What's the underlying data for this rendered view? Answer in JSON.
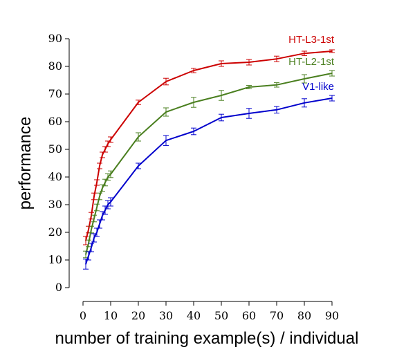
{
  "chart_data": {
    "type": "line",
    "title": "",
    "xlabel": "number of training example(s) / individual",
    "ylabel": "performance",
    "xlim": [
      0,
      90
    ],
    "ylim": [
      0,
      90
    ],
    "xticks": [
      0,
      10,
      20,
      30,
      40,
      50,
      60,
      70,
      80,
      90
    ],
    "yticks": [
      0,
      10,
      20,
      30,
      40,
      50,
      60,
      70,
      80,
      90
    ],
    "grid": false,
    "legend": "inline labels at right end of each series",
    "series": [
      {
        "name": "HT-L3-1st",
        "color": "#cc0000",
        "points": [
          [
            1,
            17,
            1.5
          ],
          [
            2,
            21,
            1.2
          ],
          [
            3,
            26,
            1.2
          ],
          [
            4,
            33,
            1.2
          ],
          [
            5,
            38,
            1.0
          ],
          [
            6,
            44,
            1.0
          ],
          [
            7,
            48,
            1.0
          ],
          [
            8,
            50,
            1.0
          ],
          [
            9,
            52,
            1.0
          ],
          [
            10,
            53.5,
            1.0
          ],
          [
            20,
            67,
            0.8
          ],
          [
            30,
            74.5,
            1.2
          ],
          [
            40,
            78.5,
            0.8
          ],
          [
            50,
            81,
            1.0
          ],
          [
            60,
            81.5,
            1.0
          ],
          [
            70,
            82.7,
            1.0
          ],
          [
            80,
            84.7,
            0.8
          ],
          [
            90,
            85.5,
            0.5
          ]
        ]
      },
      {
        "name": "HT-L2-1st",
        "color": "#4a7f1f",
        "points": [
          [
            1,
            12,
            1.2
          ],
          [
            2,
            16,
            1.2
          ],
          [
            3,
            21,
            1.2
          ],
          [
            4,
            25,
            1.2
          ],
          [
            5,
            29,
            1.2
          ],
          [
            6,
            33,
            1.2
          ],
          [
            7,
            36,
            1.2
          ],
          [
            8,
            38,
            1.2
          ],
          [
            9,
            40,
            1.2
          ],
          [
            10,
            41,
            1.2
          ],
          [
            20,
            54.5,
            1.5
          ],
          [
            30,
            63.5,
            1.5
          ],
          [
            40,
            67,
            1.8
          ],
          [
            50,
            69.5,
            1.8
          ],
          [
            60,
            72.5,
            0.6
          ],
          [
            70,
            73.3,
            0.8
          ],
          [
            80,
            75.5,
            1.5
          ],
          [
            90,
            77.5,
            1.0
          ]
        ]
      },
      {
        "name": "V1-like",
        "color": "#0000cc",
        "points": [
          [
            1,
            8.5,
            1.8
          ],
          [
            2,
            11.5,
            1.5
          ],
          [
            3,
            14.5,
            1.5
          ],
          [
            4,
            18,
            1.5
          ],
          [
            5,
            20,
            1.5
          ],
          [
            6,
            23,
            1.5
          ],
          [
            7,
            26,
            1.5
          ],
          [
            8,
            28,
            1.5
          ],
          [
            9,
            30,
            1.5
          ],
          [
            10,
            31,
            1.5
          ],
          [
            20,
            44,
            1.0
          ],
          [
            30,
            53.2,
            1.8
          ],
          [
            40,
            56.5,
            1.2
          ],
          [
            50,
            61.5,
            1.2
          ],
          [
            60,
            63,
            1.8
          ],
          [
            70,
            64.3,
            1.2
          ],
          [
            80,
            66.8,
            1.5
          ],
          [
            90,
            68.5,
            1.0
          ]
        ]
      }
    ]
  }
}
